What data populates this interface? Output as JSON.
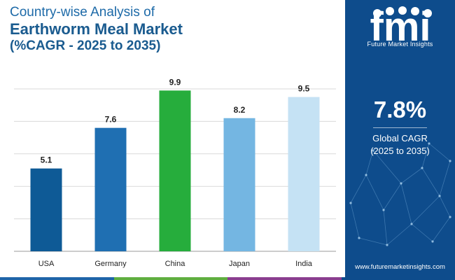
{
  "title": {
    "line1": "Country-wise Analysis of",
    "line2": "Earthworm Meal Market",
    "line3": "(%CAGR - 2025 to 2035)"
  },
  "chart_data": {
    "type": "bar",
    "categories": [
      "USA",
      "Germany",
      "China",
      "Japan",
      "India"
    ],
    "values": [
      5.1,
      7.6,
      9.9,
      8.2,
      9.5
    ],
    "colors": [
      "#0e5a96",
      "#1f6fb2",
      "#26ad3c",
      "#74b6e2",
      "#c5e2f4"
    ],
    "ylim": [
      0,
      10
    ],
    "xlabel": "",
    "ylabel": "",
    "grid": true
  },
  "brand": {
    "logo_text": "fmi",
    "caption": "Future Market Insights",
    "website": "www.futuremarketinsights.com"
  },
  "summary": {
    "value": "7.8%",
    "label": "Global CAGR",
    "period": "(2025 to 2035)"
  },
  "strip_colors": [
    "#1e64a8",
    "#5fae3f",
    "#8a3d8f",
    "#0e4c8c"
  ]
}
